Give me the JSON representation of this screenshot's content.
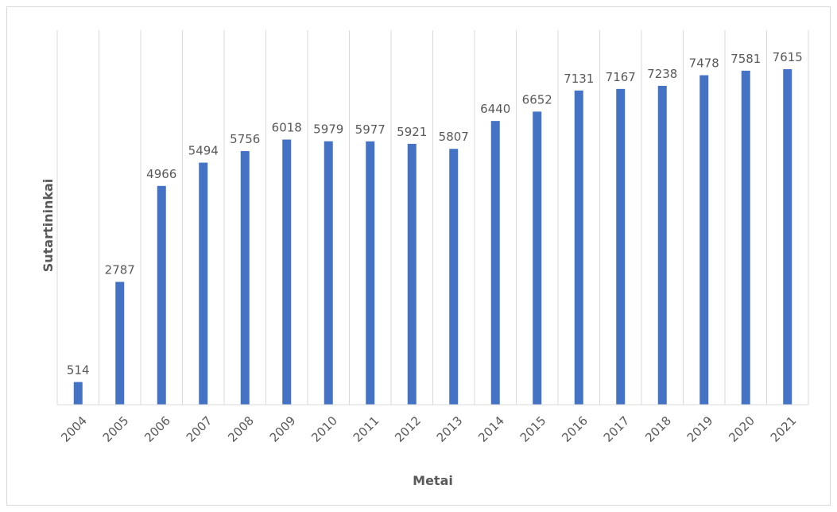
{
  "chart_data": {
    "type": "bar",
    "title": "",
    "xlabel": "Metai",
    "ylabel": "Sutartininkai",
    "categories": [
      "2004",
      "2005",
      "2006",
      "2007",
      "2008",
      "2009",
      "2010",
      "2011",
      "2012",
      "2013",
      "2014",
      "2015",
      "2016",
      "2017",
      "2018",
      "2019",
      "2020",
      "2021"
    ],
    "values": [
      514,
      2787,
      4966,
      5494,
      5756,
      6018,
      5979,
      5977,
      5921,
      5807,
      6440,
      6652,
      7131,
      7167,
      7238,
      7478,
      7581,
      7615
    ],
    "data_labels": [
      "514",
      "2787",
      "4966",
      "5494",
      "5756",
      "6018",
      "5979",
      "5977",
      "5921",
      "5807",
      "6440",
      "6652",
      "7131",
      "7167",
      "7238",
      "7478",
      "7581",
      "7615"
    ],
    "ylim": [
      0,
      8500
    ],
    "bar_color": "#4472c4",
    "gridlines": "vertical",
    "legend": "none"
  }
}
